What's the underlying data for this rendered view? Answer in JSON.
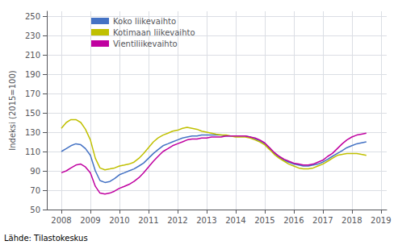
{
  "chart_data": {
    "type": "line",
    "ylabel": "Indeksi (2015=100)",
    "annotations": [
      "Lähde: Tilastokeskus"
    ],
    "x": [
      2008.0,
      2008.17,
      2008.33,
      2008.5,
      2008.67,
      2008.83,
      2009.0,
      2009.17,
      2009.33,
      2009.5,
      2009.67,
      2009.83,
      2010.0,
      2010.17,
      2010.33,
      2010.5,
      2010.67,
      2010.83,
      2011.0,
      2011.17,
      2011.33,
      2011.5,
      2011.67,
      2011.83,
      2012.0,
      2012.17,
      2012.33,
      2012.5,
      2012.67,
      2012.83,
      2013.0,
      2013.17,
      2013.33,
      2013.5,
      2013.67,
      2013.83,
      2014.0,
      2014.17,
      2014.33,
      2014.5,
      2014.67,
      2014.83,
      2015.0,
      2015.17,
      2015.33,
      2015.5,
      2015.67,
      2015.83,
      2016.0,
      2016.17,
      2016.33,
      2016.5,
      2016.67,
      2016.83,
      2017.0,
      2017.17,
      2017.33,
      2017.5,
      2017.67,
      2017.83,
      2018.0,
      2018.17,
      2018.33,
      2018.5
    ],
    "series": [
      {
        "name": "Koko liikevaihto",
        "color": "#4472c4",
        "values": [
          110,
          113,
          116,
          118,
          117,
          113,
          106,
          90,
          80,
          78,
          79,
          82,
          86,
          88,
          90,
          92,
          95,
          98,
          103,
          108,
          112,
          116,
          118,
          120,
          122,
          124,
          125,
          126,
          126,
          127,
          127,
          127,
          127,
          127,
          126,
          126,
          126,
          126,
          126,
          125,
          123,
          121,
          118,
          113,
          108,
          104,
          101,
          99,
          97,
          96,
          95,
          95,
          96,
          97,
          99,
          102,
          105,
          108,
          111,
          114,
          116,
          118,
          119,
          120
        ]
      },
      {
        "name": "Kotimaan liikevaihto",
        "color": "#c0c000",
        "values": [
          134,
          140,
          143,
          143,
          140,
          133,
          122,
          103,
          93,
          91,
          92,
          93,
          95,
          96,
          97,
          99,
          103,
          108,
          114,
          120,
          124,
          127,
          129,
          131,
          132,
          134,
          135,
          134,
          133,
          131,
          130,
          129,
          128,
          127,
          127,
          126,
          125,
          125,
          125,
          124,
          122,
          120,
          117,
          112,
          107,
          103,
          100,
          97,
          95,
          93,
          92,
          92,
          93,
          95,
          97,
          100,
          103,
          106,
          107,
          108,
          108,
          108,
          107,
          106
        ]
      },
      {
        "name": "Vientiliikevaihto",
        "color": "#c000a0",
        "values": [
          88,
          90,
          93,
          96,
          97,
          94,
          88,
          74,
          67,
          66,
          67,
          69,
          72,
          74,
          76,
          79,
          83,
          88,
          94,
          100,
          105,
          110,
          113,
          116,
          118,
          120,
          122,
          123,
          123,
          124,
          124,
          125,
          125,
          125,
          126,
          126,
          126,
          126,
          126,
          125,
          124,
          122,
          119,
          114,
          109,
          105,
          102,
          100,
          98,
          97,
          96,
          96,
          97,
          99,
          101,
          105,
          108,
          113,
          118,
          122,
          125,
          127,
          128,
          129
        ]
      }
    ],
    "xlim": [
      2007.5,
      2019.2
    ],
    "xticks": [
      2008,
      2009,
      2010,
      2011,
      2012,
      2013,
      2014,
      2015,
      2016,
      2017,
      2018,
      2019
    ],
    "ylim": [
      50,
      255
    ],
    "yticks": [
      50,
      70,
      90,
      110,
      130,
      150,
      170,
      190,
      210,
      230,
      250
    ],
    "grid": true,
    "legend": "upper left"
  }
}
